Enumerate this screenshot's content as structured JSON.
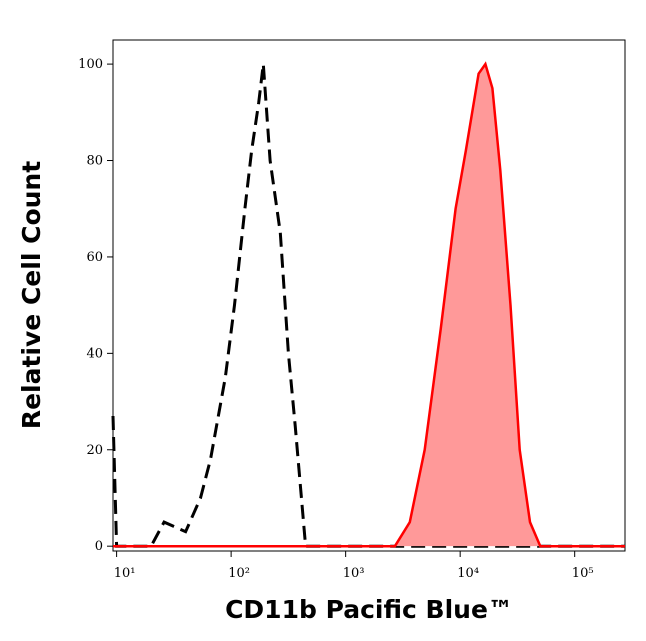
{
  "chart_data": {
    "type": "histogram-overlay",
    "x_label": "CD11b Pacific Blue™",
    "y_label": "Relative Cell Count",
    "xscale": "log",
    "xlim": [
      9.3,
      275000
    ],
    "ylim": [
      -1,
      105
    ],
    "xticks": [
      {
        "value": 10,
        "label": "10¹"
      },
      {
        "value": 100,
        "label": "10²"
      },
      {
        "value": 1000,
        "label": "10³"
      },
      {
        "value": 10000,
        "label": "10⁴"
      },
      {
        "value": 100000,
        "label": "10⁵"
      }
    ],
    "yticks": [
      0,
      20,
      40,
      60,
      80,
      100
    ],
    "series": [
      {
        "style": "dashed",
        "color": "#000000",
        "x": [
          9.3,
          10,
          20,
          26,
          40,
          54,
          66,
          89,
          107,
          132,
          151,
          174,
          191,
          219,
          269,
          316,
          363,
          447,
          275000
        ],
        "values": [
          27,
          0,
          0,
          5,
          3,
          10,
          18,
          35,
          50,
          70,
          82,
          92,
          100,
          80,
          65,
          40,
          25,
          0,
          0
        ]
      },
      {
        "style": "filled",
        "color": "#ff0000",
        "fill": "#ff9999",
        "x": [
          9.3,
          2690,
          3630,
          4900,
          6760,
          9120,
          11200,
          14500,
          16600,
          19100,
          22400,
          27500,
          33100,
          40700,
          50100,
          275000
        ],
        "values": [
          0,
          0,
          5,
          20,
          45,
          70,
          82,
          98,
          100,
          95,
          78,
          50,
          20,
          5,
          0,
          0
        ]
      }
    ]
  }
}
